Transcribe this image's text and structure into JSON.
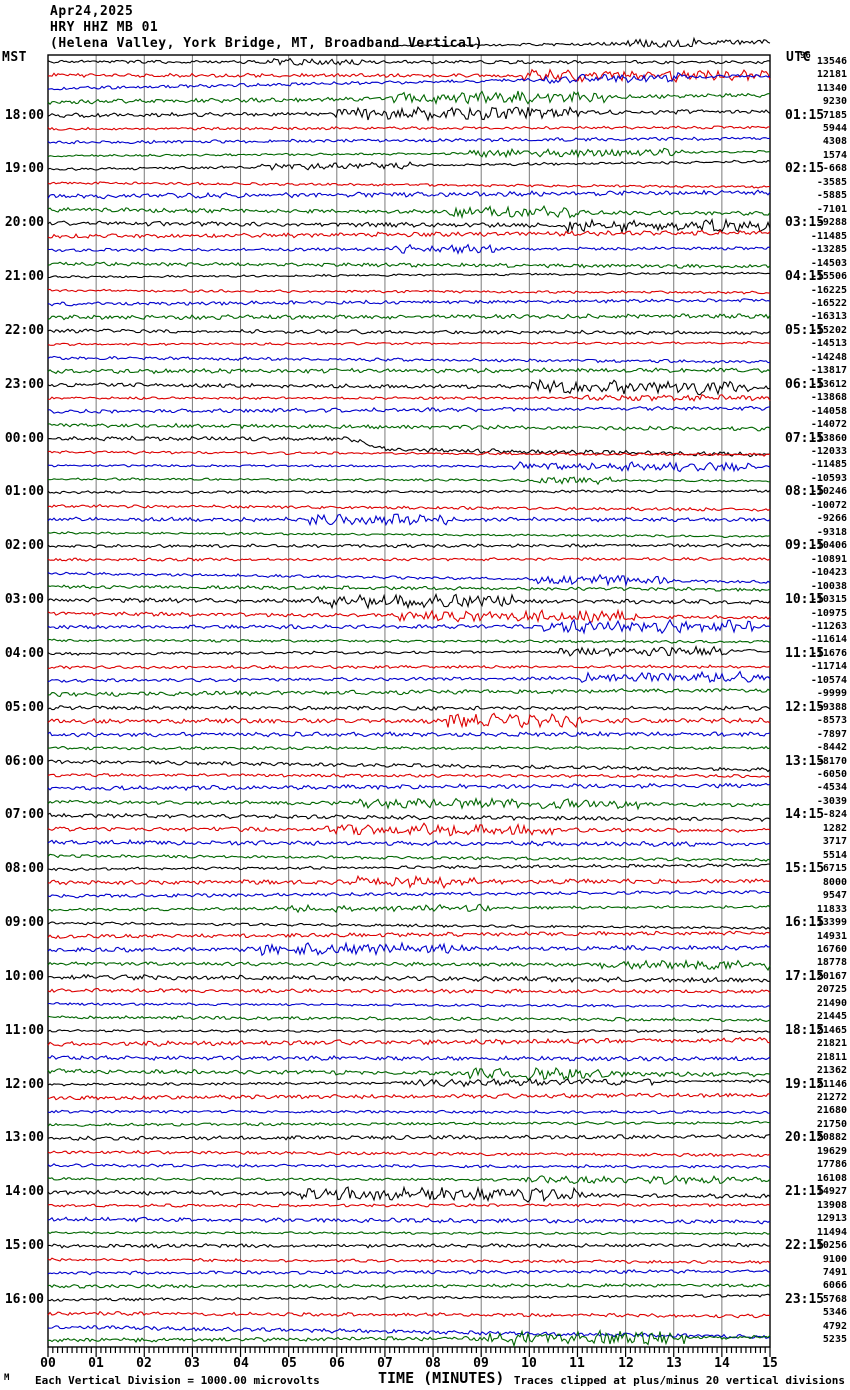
{
  "chart_data": {
    "type": "line",
    "subtype": "helicorder-seismogram",
    "date_label": "Apr24,2025",
    "station_line": "HRY HHZ MB 01",
    "location_line": "(Helena Valley, York Bridge, MT, Broadband Vertical)",
    "left_axis_label": "MST",
    "right_axis_label": "UTC",
    "xlabel": "TIME (MINUTES)",
    "xlim": [
      0,
      15
    ],
    "x_ticks": [
      "00",
      "01",
      "02",
      "03",
      "04",
      "05",
      "06",
      "07",
      "08",
      "09",
      "10",
      "11",
      "12",
      "13",
      "14",
      "15"
    ],
    "minutes_per_line": 15,
    "traces_per_hour": 4,
    "trace_colors": [
      "#000000",
      "#dd0000",
      "#0000cc",
      "#006600"
    ],
    "grid_color": "#7a7a7a",
    "mst_hour_labels": [
      "18:00",
      "19:00",
      "20:00",
      "21:00",
      "22:00",
      "23:00",
      "00:00",
      "01:00",
      "02:00",
      "03:00",
      "04:00",
      "05:00",
      "06:00",
      "07:00",
      "08:00",
      "09:00",
      "10:00",
      "11:00",
      "12:00",
      "13:00",
      "14:00",
      "15:00",
      "16:00"
    ],
    "utc_hour_labels": [
      "01:15",
      "02:15",
      "03:15",
      "04:15",
      "05:15",
      "06:15",
      "07:15",
      "08:15",
      "09:15",
      "10:15",
      "11:15",
      "12:15",
      "13:15",
      "14:15",
      "15:15",
      "16:15",
      "17:15",
      "18:15",
      "19:15",
      "20:15",
      "21:15",
      "22:15",
      "23:15"
    ],
    "hour_label_row_start": 4,
    "hour_label_row_step": 4,
    "partial_trace_value": "96",
    "trace_offsets": [
      13546,
      12181,
      11340,
      9230,
      7185,
      5944,
      4308,
      1574,
      -668,
      -3585,
      -5885,
      -7101,
      -9288,
      -11485,
      -13285,
      -14503,
      -15506,
      -16225,
      -16522,
      -16313,
      -15202,
      -14513,
      -14248,
      -13817,
      -13612,
      -13868,
      -14058,
      -14072,
      -13860,
      -12033,
      -11485,
      -10593,
      -10246,
      -10072,
      -9266,
      -9318,
      -10406,
      -10891,
      -10423,
      -10038,
      -10315,
      -10975,
      -11263,
      -11614,
      -11676,
      -11714,
      -10574,
      -9999,
      -9388,
      -8573,
      -7897,
      -8442,
      -8170,
      -6050,
      -4534,
      -3039,
      -824,
      1282,
      3717,
      5514,
      6715,
      8000,
      9547,
      11833,
      13399,
      14931,
      16760,
      18778,
      20167,
      20725,
      21490,
      21445,
      21465,
      21821,
      21811,
      21362,
      21146,
      21272,
      21680,
      21750,
      20882,
      19629,
      17786,
      16108,
      14927,
      13908,
      12913,
      11494,
      10256,
      9100,
      7491,
      6066,
      5768,
      5346,
      4792,
      5235
    ],
    "footer": {
      "left_note": "Each Vertical Division = 1000.00 microvolts",
      "xlabel": "TIME (MINUTES)",
      "right_note": "Traces clipped at plus/minus 20 vertical divisions",
      "corner_mark": "M"
    }
  }
}
